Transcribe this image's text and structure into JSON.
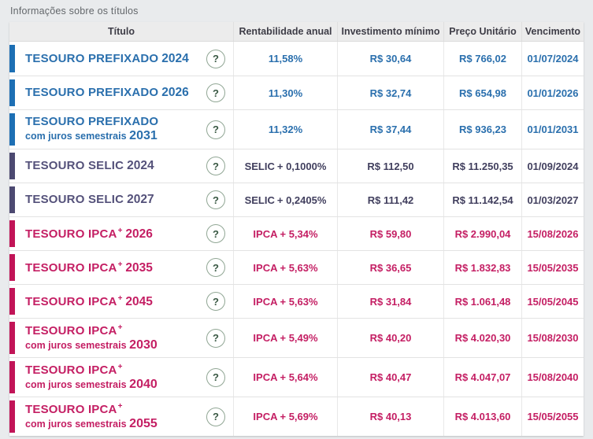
{
  "page": {
    "label": "Informações sobre os títulos"
  },
  "colors": {
    "prefixado_bar": "#1d6fb4",
    "prefixado_text": "#2a6fad",
    "selic_bar": "#4c4971",
    "selic_text": "#413f5e",
    "ipca_bar": "#c11457",
    "ipca_text": "#c41e63",
    "header_bg": "#ececec",
    "page_bg": "#e9ebed"
  },
  "table": {
    "headers": [
      "Título",
      "Rentabilidade anual",
      "Investimento mínimo",
      "Preço Unitário",
      "Vencimento"
    ],
    "help_icon": "?",
    "rows": [
      {
        "group": "prefixado",
        "name": "TESOURO PREFIXADO",
        "plus": false,
        "sub": "",
        "year": "2024",
        "rate_label": "",
        "rate_value": "11,58%",
        "min": "R$ 30,64",
        "price": "R$ 766,02",
        "due": "01/07/2024"
      },
      {
        "group": "prefixado",
        "name": "TESOURO PREFIXADO",
        "plus": false,
        "sub": "",
        "year": "2026",
        "rate_label": "",
        "rate_value": "11,30%",
        "min": "R$ 32,74",
        "price": "R$ 654,98",
        "due": "01/01/2026"
      },
      {
        "group": "prefixado",
        "name": "TESOURO PREFIXADO",
        "plus": false,
        "sub": "com juros semestrais",
        "year": "2031",
        "rate_label": "",
        "rate_value": "11,32%",
        "min": "R$ 37,44",
        "price": "R$ 936,23",
        "due": "01/01/2031"
      },
      {
        "group": "selic",
        "name": "TESOURO SELIC",
        "plus": false,
        "sub": "",
        "year": "2024",
        "rate_label": "SELIC",
        "rate_value": "+ 0,1000%",
        "min": "R$ 112,50",
        "price": "R$ 11.250,35",
        "due": "01/09/2024"
      },
      {
        "group": "selic",
        "name": "TESOURO SELIC",
        "plus": false,
        "sub": "",
        "year": "2027",
        "rate_label": "SELIC",
        "rate_value": "+ 0,2405%",
        "min": "R$ 111,42",
        "price": "R$ 11.142,54",
        "due": "01/03/2027"
      },
      {
        "group": "ipca",
        "name": "TESOURO IPCA",
        "plus": true,
        "sub": "",
        "year": "2026",
        "rate_label": "IPCA",
        "rate_value": "+ 5,34%",
        "min": "R$ 59,80",
        "price": "R$ 2.990,04",
        "due": "15/08/2026"
      },
      {
        "group": "ipca",
        "name": "TESOURO IPCA",
        "plus": true,
        "sub": "",
        "year": "2035",
        "rate_label": "IPCA",
        "rate_value": "+ 5,63%",
        "min": "R$ 36,65",
        "price": "R$ 1.832,83",
        "due": "15/05/2035"
      },
      {
        "group": "ipca",
        "name": "TESOURO IPCA",
        "plus": true,
        "sub": "",
        "year": "2045",
        "rate_label": "IPCA",
        "rate_value": "+ 5,63%",
        "min": "R$ 31,84",
        "price": "R$ 1.061,48",
        "due": "15/05/2045"
      },
      {
        "group": "ipca",
        "name": "TESOURO IPCA",
        "plus": true,
        "sub": "com juros semestrais",
        "year": "2030",
        "rate_label": "IPCA",
        "rate_value": "+ 5,49%",
        "min": "R$ 40,20",
        "price": "R$ 4.020,30",
        "due": "15/08/2030"
      },
      {
        "group": "ipca",
        "name": "TESOURO IPCA",
        "plus": true,
        "sub": "com juros semestrais",
        "year": "2040",
        "rate_label": "IPCA",
        "rate_value": "+ 5,64%",
        "min": "R$ 40,47",
        "price": "R$ 4.047,07",
        "due": "15/08/2040"
      },
      {
        "group": "ipca",
        "name": "TESOURO IPCA",
        "plus": true,
        "sub": "com juros semestrais",
        "year": "2055",
        "rate_label": "IPCA",
        "rate_value": "+ 5,69%",
        "min": "R$ 40,13",
        "price": "R$ 4.013,60",
        "due": "15/05/2055"
      }
    ]
  }
}
